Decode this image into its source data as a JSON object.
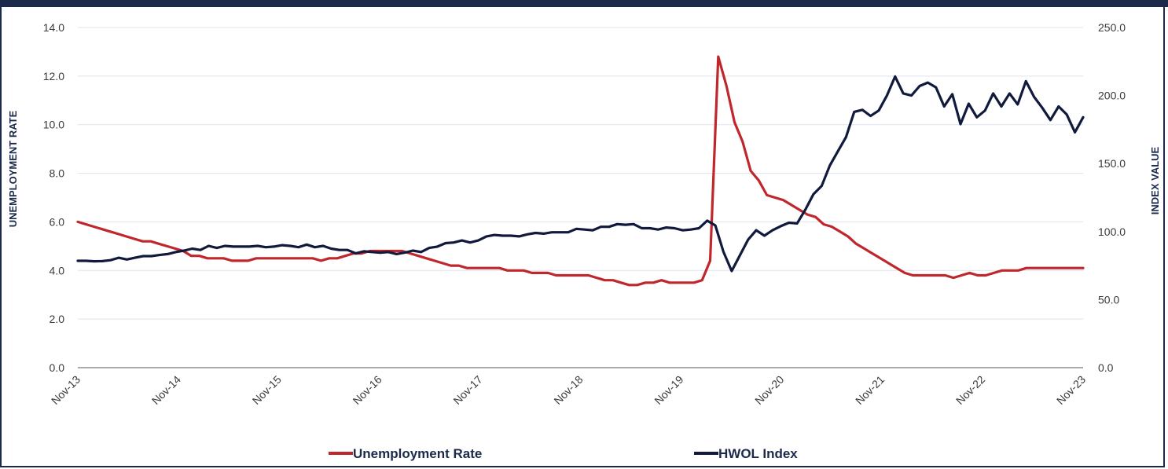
{
  "chart_data": {
    "type": "line",
    "xlabel": "",
    "ylabel": "UNEMPLOYMENT RATE",
    "y2label": "INDEX VALUE",
    "ylim": [
      0,
      14
    ],
    "y2lim": [
      0,
      250
    ],
    "yticks": [
      "0.0",
      "2.0",
      "4.0",
      "6.0",
      "8.0",
      "10.0",
      "12.0",
      "14.0"
    ],
    "y2ticks": [
      "0.0",
      "50.0",
      "100.0",
      "150.0",
      "200.0",
      "250.0"
    ],
    "xticks": [
      "Nov-13",
      "Nov-14",
      "Nov-15",
      "Nov-16",
      "Nov-17",
      "Nov-18",
      "Nov-19",
      "Nov-20",
      "Nov-21",
      "Nov-22",
      "Nov-23"
    ],
    "grid": true,
    "legend_position": "bottom",
    "colors": {
      "unemployment": "#c0272d",
      "hwol": "#111a3d",
      "grid": "#dde3ee",
      "frame": "#1b2a4a"
    },
    "series": [
      {
        "name": "Unemployment Rate",
        "axis": "left",
        "values": [
          6.0,
          5.9,
          5.8,
          5.7,
          5.6,
          5.5,
          5.4,
          5.3,
          5.2,
          5.2,
          5.1,
          5.0,
          4.9,
          4.8,
          4.6,
          4.6,
          4.5,
          4.5,
          4.5,
          4.4,
          4.4,
          4.4,
          4.5,
          4.5,
          4.5,
          4.5,
          4.5,
          4.5,
          4.5,
          4.5,
          4.4,
          4.5,
          4.5,
          4.6,
          4.7,
          4.7,
          4.8,
          4.8,
          4.8,
          4.8,
          4.8,
          4.7,
          4.6,
          4.5,
          4.4,
          4.3,
          4.2,
          4.2,
          4.1,
          4.1,
          4.1,
          4.1,
          4.1,
          4.0,
          4.0,
          4.0,
          3.9,
          3.9,
          3.9,
          3.8,
          3.8,
          3.8,
          3.8,
          3.8,
          3.7,
          3.6,
          3.6,
          3.5,
          3.4,
          3.4,
          3.5,
          3.5,
          3.6,
          3.5,
          3.5,
          3.5,
          3.5,
          3.6,
          4.4,
          12.8,
          11.6,
          10.1,
          9.3,
          8.1,
          7.7,
          7.1,
          7.0,
          6.9,
          6.7,
          6.5,
          6.3,
          6.2,
          5.9,
          5.8,
          5.6,
          5.4,
          5.1,
          4.9,
          4.7,
          4.5,
          4.3,
          4.1,
          3.9,
          3.8,
          3.8,
          3.8,
          3.8,
          3.8,
          3.7,
          3.8,
          3.9,
          3.8,
          3.8,
          3.9,
          4.0,
          4.0,
          4.0,
          4.1,
          4.1,
          4.1,
          4.1,
          4.1,
          4.1,
          4.1,
          4.1
        ]
      },
      {
        "name": "HWOL Index",
        "axis": "right",
        "values": [
          78.5,
          78.5,
          78.2,
          78.3,
          79,
          80.8,
          79.5,
          80.8,
          82,
          82,
          82.8,
          83.5,
          85,
          86,
          87.5,
          86.5,
          89.5,
          88,
          89.5,
          89,
          89,
          89,
          89.5,
          88.5,
          89,
          90,
          89.5,
          88.5,
          90.5,
          88.5,
          89.5,
          87.5,
          86.5,
          86.5,
          84,
          85.5,
          85,
          84.5,
          85,
          83.5,
          84.5,
          86,
          85,
          88,
          89,
          91.5,
          92,
          93.5,
          92,
          93.5,
          96.5,
          97.5,
          97,
          97,
          96.5,
          98,
          99,
          98.5,
          99.5,
          99.5,
          99.5,
          102,
          101.5,
          101,
          103.5,
          103.5,
          105.5,
          105,
          105.5,
          102.5,
          102.5,
          101.5,
          103,
          102.5,
          101,
          101.5,
          102.5,
          108,
          104.5,
          85,
          71,
          82.5,
          94,
          101,
          97,
          101,
          104,
          106.5,
          106,
          116,
          127.5,
          133.5,
          148.5,
          159,
          169.5,
          188,
          189.5,
          185,
          189,
          200,
          214,
          201.5,
          200,
          207,
          209.5,
          206,
          192,
          201,
          179,
          194,
          184,
          189,
          201.5,
          192,
          201.5,
          193.5,
          210.5,
          199,
          191,
          182,
          192,
          186,
          173,
          184
        ]
      }
    ]
  },
  "legend": {
    "items": [
      {
        "label": "Unemployment Rate"
      },
      {
        "label": "HWOL Index"
      }
    ]
  }
}
